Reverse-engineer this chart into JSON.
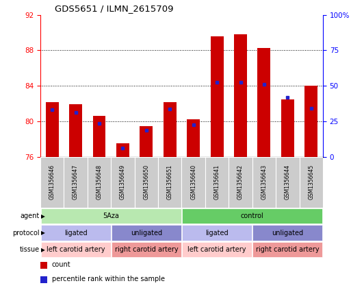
{
  "title": "GDS5651 / ILMN_2615709",
  "samples": [
    "GSM1356646",
    "GSM1356647",
    "GSM1356648",
    "GSM1356649",
    "GSM1356650",
    "GSM1356651",
    "GSM1356640",
    "GSM1356641",
    "GSM1356642",
    "GSM1356643",
    "GSM1356644",
    "GSM1356645"
  ],
  "bar_tops": [
    82.2,
    81.9,
    80.6,
    77.5,
    79.5,
    82.2,
    80.2,
    89.6,
    89.8,
    88.3,
    82.5,
    84.0
  ],
  "bar_base": 76,
  "blue_vals": [
    81.3,
    81.0,
    79.8,
    77.0,
    79.0,
    81.4,
    79.6,
    84.4,
    84.4,
    84.2,
    82.7,
    81.5
  ],
  "ylim_left": [
    76,
    92
  ],
  "yticks_left": [
    76,
    80,
    84,
    88,
    92
  ],
  "ylim_right": [
    0,
    100
  ],
  "yticks_right": [
    0,
    25,
    50,
    75,
    100
  ],
  "yticklabels_right": [
    "0",
    "25",
    "50",
    "75",
    "100%"
  ],
  "bar_color": "#cc0000",
  "blue_color": "#2222cc",
  "background_color": "#ffffff",
  "agent_groups": [
    {
      "label": "5Aza",
      "start": 0,
      "end": 6,
      "color": "#b8e8b0"
    },
    {
      "label": "control",
      "start": 6,
      "end": 12,
      "color": "#66cc66"
    }
  ],
  "protocol_groups": [
    {
      "label": "ligated",
      "start": 0,
      "end": 3,
      "color": "#bbbbee"
    },
    {
      "label": "unligated",
      "start": 3,
      "end": 6,
      "color": "#8888cc"
    },
    {
      "label": "ligated",
      "start": 6,
      "end": 9,
      "color": "#bbbbee"
    },
    {
      "label": "unligated",
      "start": 9,
      "end": 12,
      "color": "#8888cc"
    }
  ],
  "tissue_groups": [
    {
      "label": "left carotid artery",
      "start": 0,
      "end": 3,
      "color": "#ffcccc"
    },
    {
      "label": "right carotid artery",
      "start": 3,
      "end": 6,
      "color": "#ee9999"
    },
    {
      "label": "left carotid artery",
      "start": 6,
      "end": 9,
      "color": "#ffcccc"
    },
    {
      "label": "right carotid artery",
      "start": 9,
      "end": 12,
      "color": "#ee9999"
    }
  ],
  "row_labels": [
    "agent",
    "protocol",
    "tissue"
  ],
  "sample_bg_color": "#cccccc",
  "legend_items": [
    {
      "label": "count",
      "color": "#cc0000"
    },
    {
      "label": "percentile rank within the sample",
      "color": "#2222cc"
    }
  ]
}
